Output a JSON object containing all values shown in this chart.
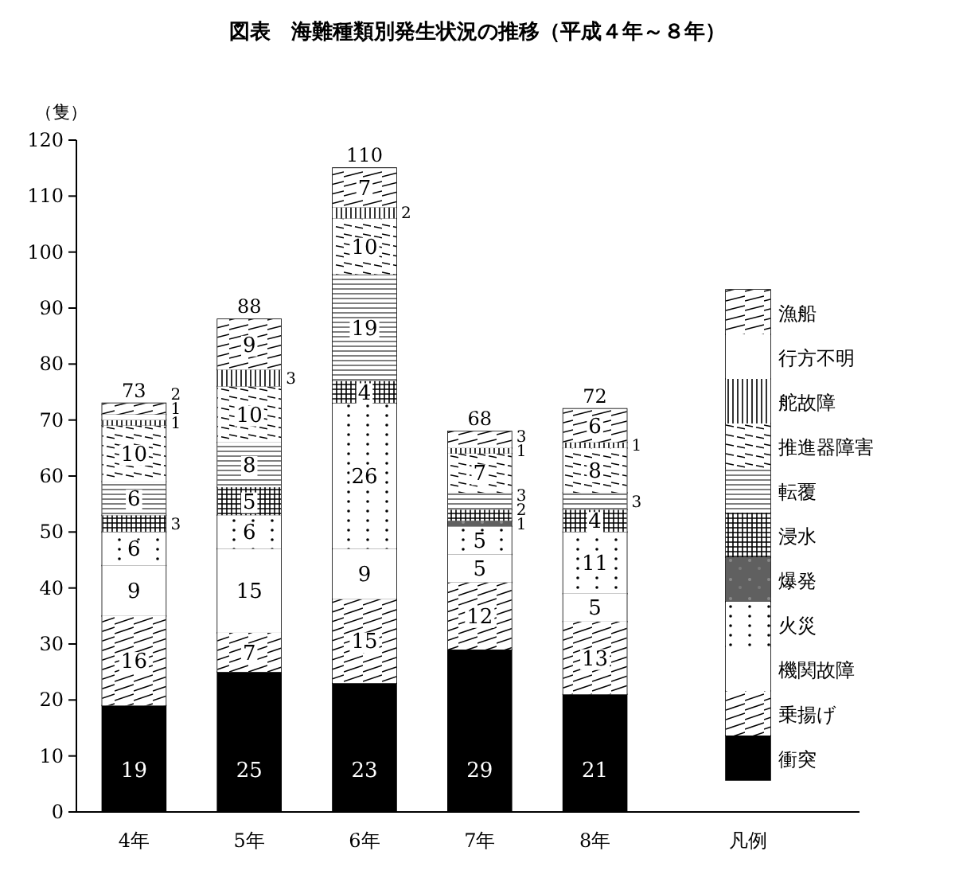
{
  "chart_data": {
    "type": "bar",
    "stacked": true,
    "title": "図表　海難種類別発生状況の推移（平成４年～８年）",
    "ylabel": "（隻）",
    "legend_title": "凡例",
    "categories": [
      "4年",
      "5年",
      "6年",
      "7年",
      "8年"
    ],
    "ylim": [
      0,
      120
    ],
    "yticks": [
      0,
      10,
      20,
      30,
      40,
      50,
      60,
      70,
      80,
      90,
      100,
      110,
      120
    ],
    "grid": false,
    "legend": "right",
    "totals": [
      "73",
      "88",
      "110",
      "68",
      "72"
    ],
    "series": [
      {
        "name": "衝突",
        "color": "#000000",
        "values": [
          19,
          25,
          23,
          29,
          21
        ],
        "value_labels": [
          "19",
          "25",
          "23",
          "29",
          "21"
        ]
      },
      {
        "name": "乗揚げ",
        "color": "#ffffff",
        "values": [
          16,
          7,
          15,
          12,
          13
        ],
        "value_labels": [
          "16",
          "7",
          "15",
          "12",
          "13"
        ]
      },
      {
        "name": "機関故障",
        "color": "#ffffff",
        "values": [
          9,
          15,
          9,
          5,
          5
        ],
        "value_labels": [
          "9",
          "15",
          "9",
          "5",
          "5"
        ]
      },
      {
        "name": "火災",
        "color": "#ffffff",
        "values": [
          6,
          6,
          26,
          5,
          11
        ],
        "value_labels": [
          "6",
          "6",
          "26",
          "5",
          "11"
        ]
      },
      {
        "name": "爆発",
        "color": "#606060",
        "values": [
          0,
          0,
          0,
          1,
          0
        ],
        "value_labels": [
          null,
          null,
          null,
          "1",
          null
        ]
      },
      {
        "name": "浸水",
        "color": "#ffffff",
        "values": [
          3,
          5,
          4,
          2,
          4
        ],
        "value_labels": [
          "3",
          "5",
          "4",
          "2",
          "4"
        ]
      },
      {
        "name": "転覆",
        "color": "#ffffff",
        "values": [
          6,
          8,
          19,
          3,
          3
        ],
        "value_labels": [
          "6",
          "8",
          "19",
          "3",
          "3"
        ]
      },
      {
        "name": "推進器障害",
        "color": "#ffffff",
        "values": [
          10,
          10,
          10,
          7,
          8
        ],
        "value_labels": [
          "10",
          "10",
          "10",
          "7",
          "8"
        ]
      },
      {
        "name": "舵故障",
        "color": "#ffffff",
        "values": [
          1,
          3,
          2,
          1,
          1
        ],
        "value_labels": [
          "1",
          "3",
          "2",
          "1",
          "1"
        ]
      },
      {
        "name": "行方不明",
        "color": "#ffffff",
        "values": [
          1,
          0,
          0,
          0,
          0
        ],
        "value_labels": [
          "1",
          null,
          null,
          null,
          null
        ]
      },
      {
        "name": "漁船",
        "color": "#ffffff",
        "values": [
          2,
          9,
          7,
          3,
          6
        ],
        "value_labels": [
          "2",
          "9",
          "7",
          "3",
          "6"
        ]
      }
    ]
  }
}
